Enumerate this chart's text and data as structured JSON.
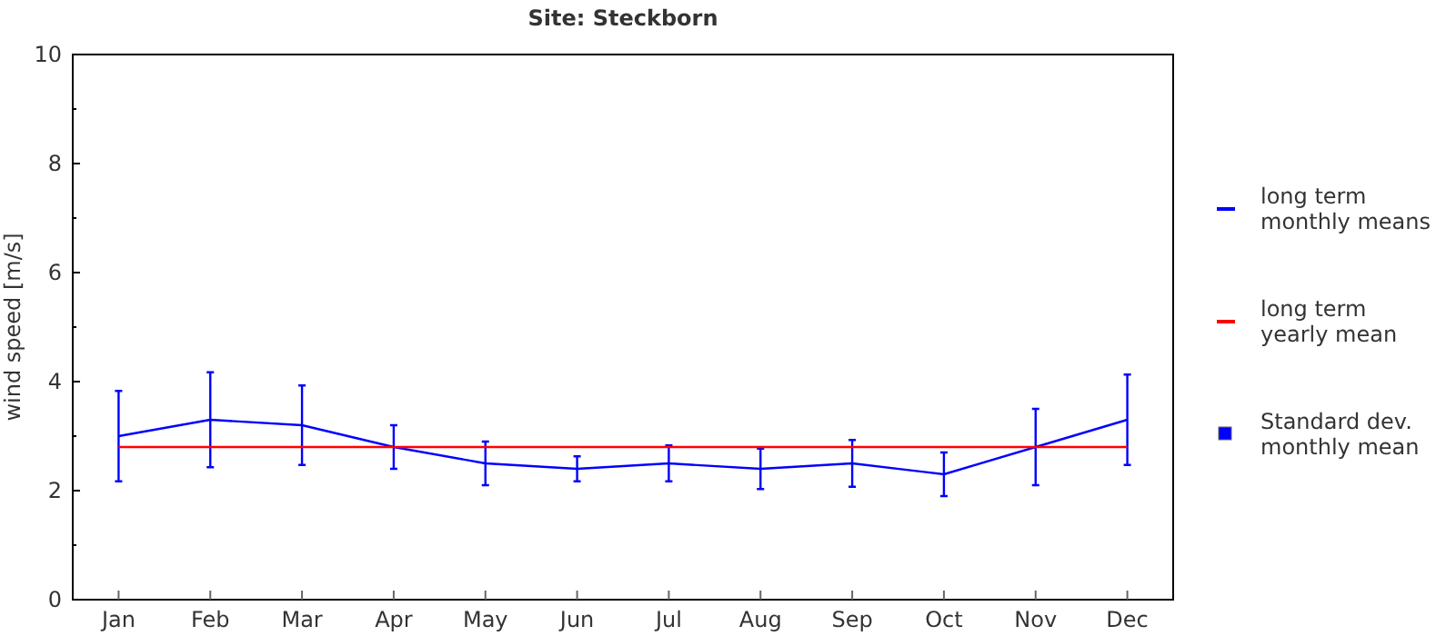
{
  "chart_data": {
    "type": "line",
    "title": "Site: Steckborn",
    "ylabel": "wind speed [m/s]",
    "categories": [
      "Jan",
      "Feb",
      "Mar",
      "Apr",
      "May",
      "Jun",
      "Jul",
      "Aug",
      "Sep",
      "Oct",
      "Nov",
      "Dec"
    ],
    "series": [
      {
        "name": "long term monthly means",
        "color": "#0000ff",
        "values": [
          3.0,
          3.3,
          3.2,
          2.8,
          2.5,
          2.4,
          2.5,
          2.4,
          2.5,
          2.3,
          2.8,
          3.3
        ],
        "errors": [
          0.83,
          0.87,
          0.73,
          0.4,
          0.4,
          0.23,
          0.33,
          0.37,
          0.43,
          0.4,
          0.7,
          0.83
        ]
      },
      {
        "name": "long term yearly mean",
        "color": "#ff0000",
        "values": [
          2.8,
          2.8,
          2.8,
          2.8,
          2.8,
          2.8,
          2.8,
          2.8,
          2.8,
          2.8,
          2.8,
          2.8
        ]
      }
    ],
    "annotations": [
      "Standard dev. monthly mean"
    ],
    "ylim": [
      0,
      10
    ],
    "yticks": [
      0,
      {
        "value": 1,
        "label": null
      },
      2,
      {
        "value": 3,
        "label": null
      },
      4,
      {
        "value": 5,
        "label": null
      },
      6,
      {
        "value": 7,
        "label": null
      },
      8,
      {
        "value": 9,
        "label": null
      },
      10
    ],
    "grid": false,
    "legend": "right"
  }
}
